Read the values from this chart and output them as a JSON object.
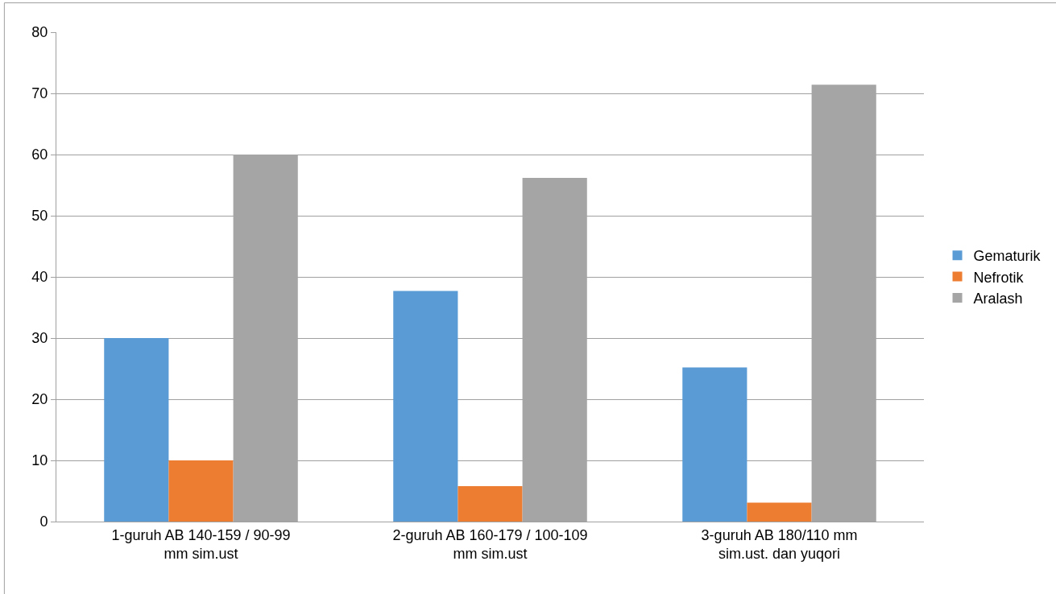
{
  "chart_data": {
    "type": "bar",
    "categories": [
      "1-guruh AB 140-159 / 90-99 mm sim.ust",
      "2-guruh AB 160-179 / 100-109 mm sim.ust",
      "3-guruh AB 180/110 mm sim.ust. dan yuqori"
    ],
    "series": [
      {
        "name": "Gematurik",
        "color": "#5b9bd5",
        "values": [
          30,
          37.7,
          25.2
        ]
      },
      {
        "name": "Nefrotik",
        "color": "#ed7d31",
        "values": [
          10,
          5.8,
          3.1
        ]
      },
      {
        "name": "Aralash",
        "color": "#a5a5a5",
        "values": [
          60,
          56.2,
          71.4
        ]
      }
    ],
    "ylim": [
      0,
      80
    ],
    "yticks": [
      0,
      10,
      20,
      30,
      40,
      50,
      60,
      70,
      80
    ],
    "grid": "y",
    "legend": "right"
  }
}
